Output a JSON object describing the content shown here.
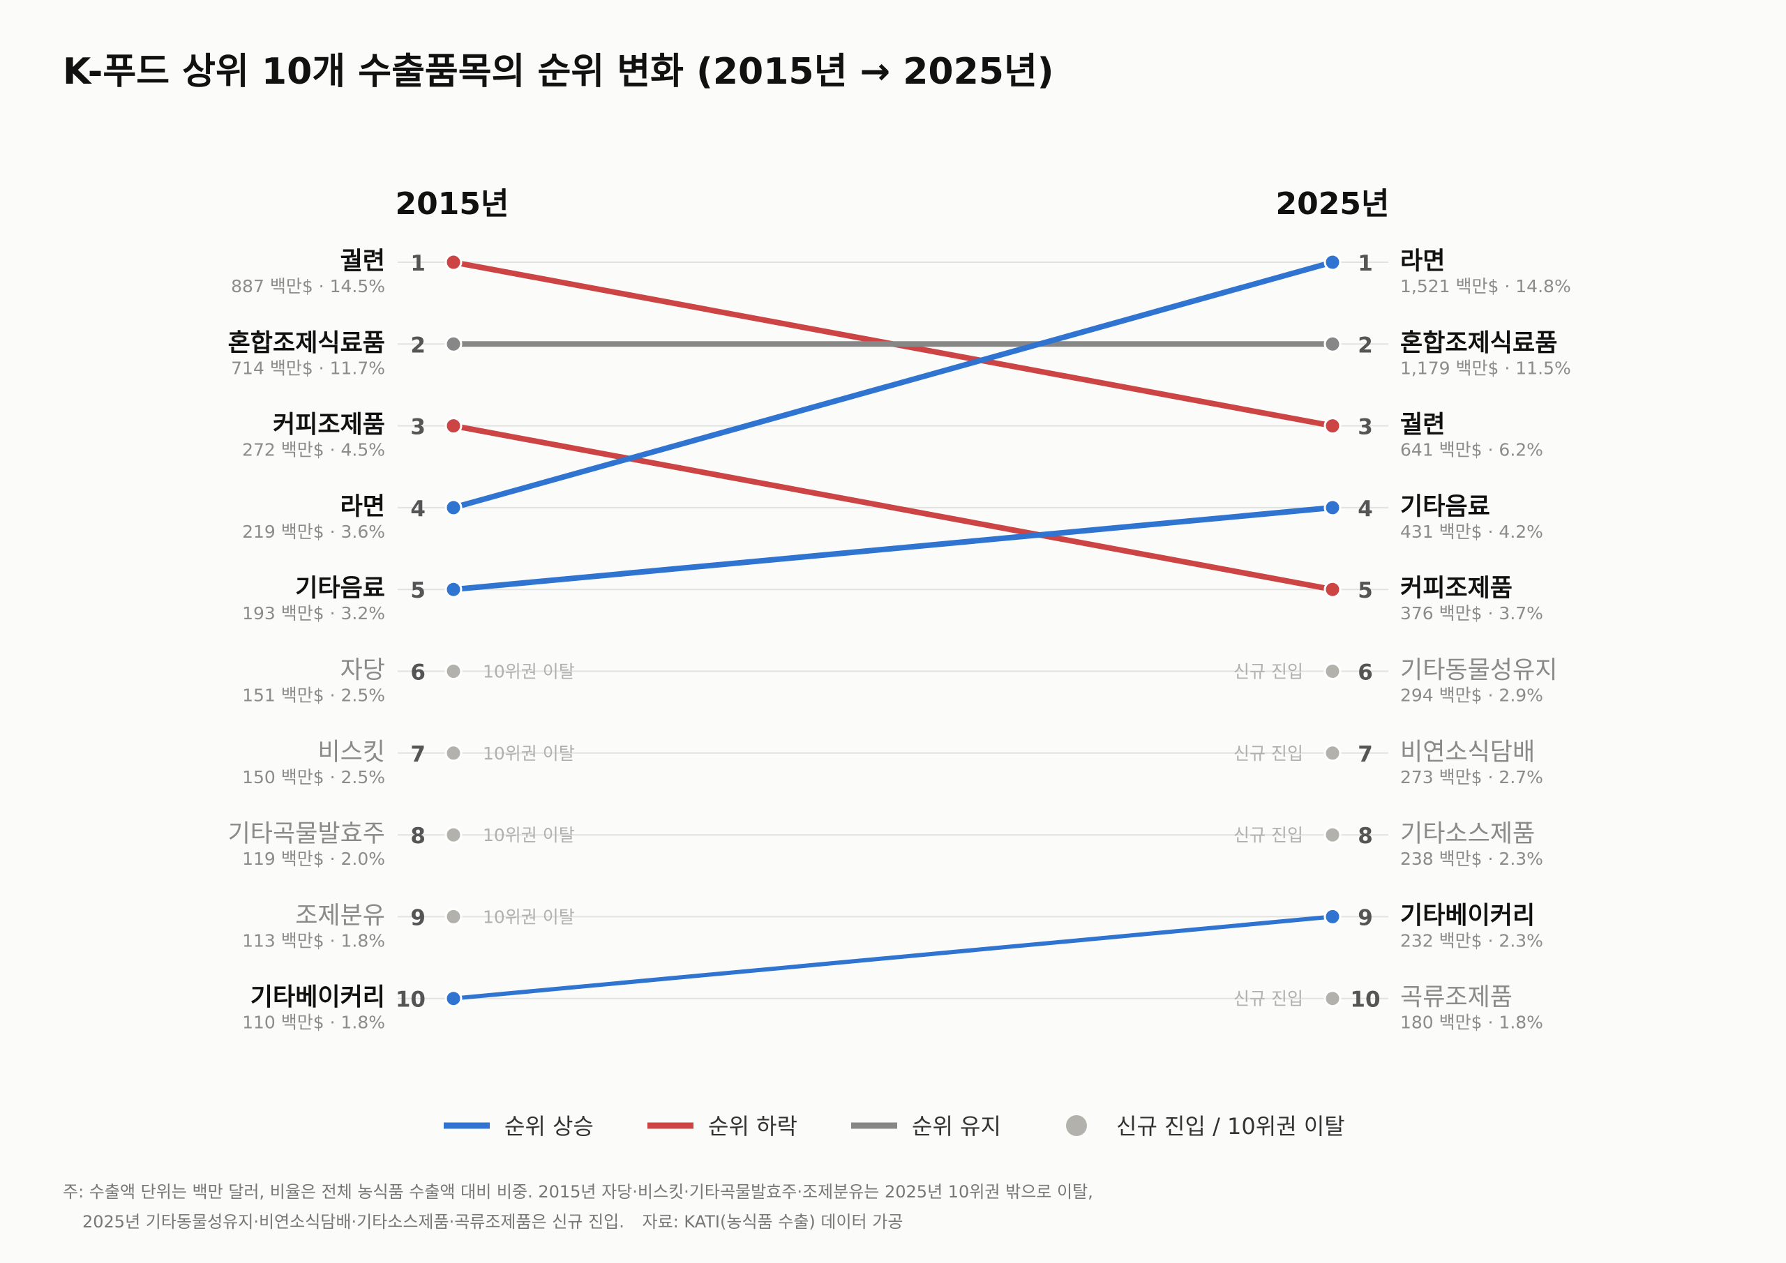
{
  "title": "K-푸드 상위 10개 수출품목의 순위 변화 (2015년 → 2025년)",
  "chart_data": {
    "type": "slope",
    "title": "K-푸드 상위 10개 수출품목의 순위 변화 (2015년 → 2025년)",
    "left_label": "2015년",
    "right_label": "2025년",
    "unit": "백만$",
    "left": [
      {
        "rank": 1,
        "name": "궐련",
        "value": "887",
        "share": "14.5%",
        "status": "down"
      },
      {
        "rank": 2,
        "name": "혼합조제식료품",
        "value": "714",
        "share": "11.7%",
        "status": "same"
      },
      {
        "rank": 3,
        "name": "커피조제품",
        "value": "272",
        "share": "4.5%",
        "status": "down"
      },
      {
        "rank": 4,
        "name": "라면",
        "value": "219",
        "share": "3.6%",
        "status": "up"
      },
      {
        "rank": 5,
        "name": "기타음료",
        "value": "193",
        "share": "3.2%",
        "status": "up"
      },
      {
        "rank": 6,
        "name": "자당",
        "value": "151",
        "share": "2.5%",
        "status": "out",
        "note": "10위권 이탈"
      },
      {
        "rank": 7,
        "name": "비스킷",
        "value": "150",
        "share": "2.5%",
        "status": "out",
        "note": "10위권 이탈"
      },
      {
        "rank": 8,
        "name": "기타곡물발효주",
        "value": "119",
        "share": "2.0%",
        "status": "out",
        "note": "10위권 이탈"
      },
      {
        "rank": 9,
        "name": "조제분유",
        "value": "113",
        "share": "1.8%",
        "status": "out",
        "note": "10위권 이탈"
      },
      {
        "rank": 10,
        "name": "기타베이커리",
        "value": "110",
        "share": "1.8%",
        "status": "up"
      }
    ],
    "right": [
      {
        "rank": 1,
        "name": "라면",
        "value": "1,521",
        "share": "14.8%",
        "status": "up"
      },
      {
        "rank": 2,
        "name": "혼합조제식료품",
        "value": "1,179",
        "share": "11.5%",
        "status": "same"
      },
      {
        "rank": 3,
        "name": "궐련",
        "value": "641",
        "share": "6.2%",
        "status": "down"
      },
      {
        "rank": 4,
        "name": "기타음료",
        "value": "431",
        "share": "4.2%",
        "status": "up"
      },
      {
        "rank": 5,
        "name": "커피조제품",
        "value": "376",
        "share": "3.7%",
        "status": "down"
      },
      {
        "rank": 6,
        "name": "기타동물성유지",
        "value": "294",
        "share": "2.9%",
        "status": "new",
        "note": "신규 진입"
      },
      {
        "rank": 7,
        "name": "비연소식담배",
        "value": "273",
        "share": "2.7%",
        "status": "new",
        "note": "신규 진입"
      },
      {
        "rank": 8,
        "name": "기타소스제품",
        "value": "238",
        "share": "2.3%",
        "status": "new",
        "note": "신규 진입"
      },
      {
        "rank": 9,
        "name": "기타베이커리",
        "value": "232",
        "share": "2.3%",
        "status": "up"
      },
      {
        "rank": 10,
        "name": "곡류조제품",
        "value": "180",
        "share": "1.8%",
        "status": "new",
        "note": "신규 진입"
      }
    ],
    "links": [
      {
        "from": 1,
        "to": 3,
        "status": "down"
      },
      {
        "from": 2,
        "to": 2,
        "status": "same"
      },
      {
        "from": 3,
        "to": 5,
        "status": "down"
      },
      {
        "from": 4,
        "to": 1,
        "status": "up"
      },
      {
        "from": 5,
        "to": 4,
        "status": "up"
      },
      {
        "from": 10,
        "to": 9,
        "status": "up"
      }
    ],
    "colors": {
      "up": "#2f74d0",
      "down": "#cc4444",
      "same": "#878787",
      "neutral": "#b3b1ac"
    },
    "legend": [
      {
        "label": "순위 상승",
        "kind": "line",
        "status": "up"
      },
      {
        "label": "순위 하락",
        "kind": "line",
        "status": "down"
      },
      {
        "label": "순위 유지",
        "kind": "line",
        "status": "same"
      },
      {
        "label": "신규 진입 / 10위권 이탈",
        "kind": "dot",
        "status": "neutral"
      }
    ]
  },
  "footnote": {
    "line1": "주: 수출액 단위는 백만 달러, 비율은 전체 농식품 수출액 대비 비중. 2015년 자당·비스킷·기타곡물발효주·조제분유는 2025년 10위권 밖으로 이탈,",
    "line2": "2025년 기타동물성유지·비연소식담배·기타소스제품·곡류조제품은 신규 진입.",
    "source": "자료: KATI(농식품 수출) 데이터 가공"
  }
}
